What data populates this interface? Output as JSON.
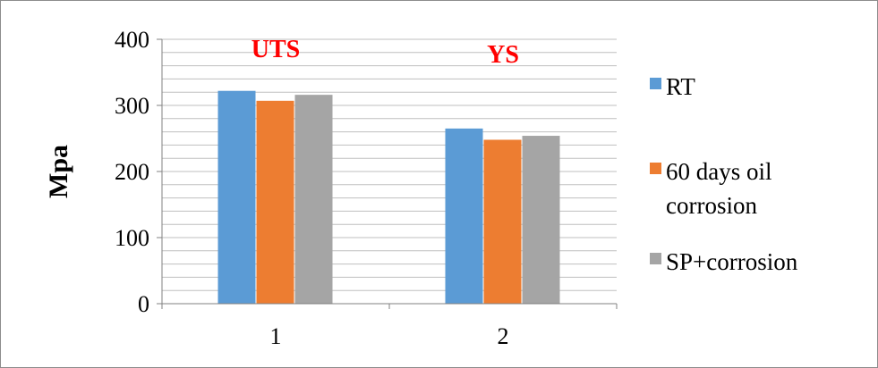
{
  "chart_data": {
    "type": "bar",
    "categories": [
      "1",
      "2"
    ],
    "series": [
      {
        "name": "RT",
        "values": [
          322,
          265
        ],
        "color": "#5b9bd5"
      },
      {
        "name": "60 days oil corrosion",
        "values": [
          307,
          248
        ],
        "color": "#ed7d31"
      },
      {
        "name": "SP+corrosion",
        "values": [
          316,
          254
        ],
        "color": "#a5a5a5"
      }
    ],
    "legend_lines": [
      [
        "RT"
      ],
      [
        "60 days oil",
        "corrosion"
      ],
      [
        "SP+corrosion"
      ]
    ],
    "title": "",
    "xlabel": "",
    "ylabel": "Mpa",
    "ylim": [
      0,
      400
    ],
    "yticks": [
      0,
      100,
      200,
      300,
      400
    ],
    "grid": "horizontal minor gridlines every 20",
    "legend_position": "right",
    "annotations": [
      {
        "text": "UTS",
        "category": "1",
        "color": "#ff0000"
      },
      {
        "text": "YS",
        "category": "2",
        "color": "#ff0000"
      }
    ]
  }
}
